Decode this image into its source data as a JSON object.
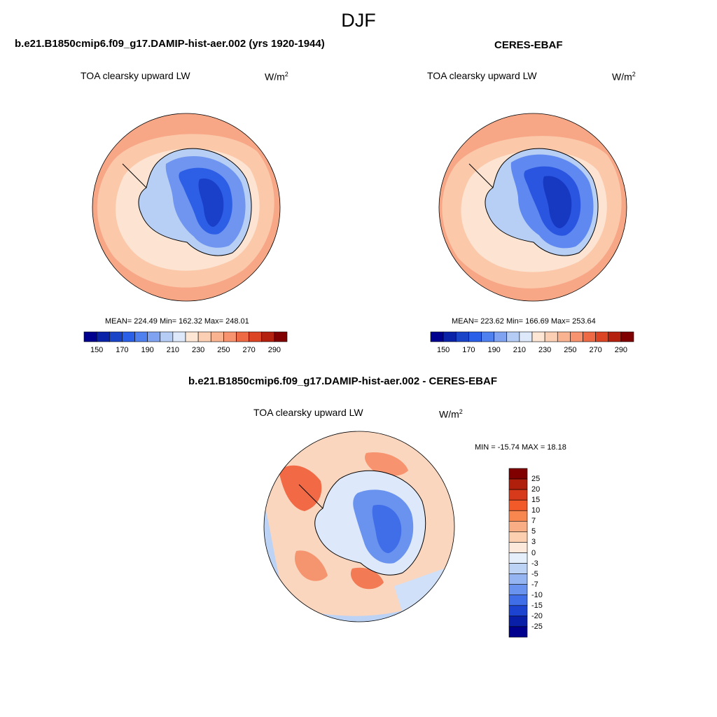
{
  "figure": {
    "title": "DJF"
  },
  "panels": [
    {
      "title": "b.e21.B1850cmip6.f09_g17.DAMIP-hist-aer.002 (yrs 1920-1944)",
      "variable": "TOA clearsky upward LW",
      "units_base": "W/m",
      "units_exp": "2",
      "stats": "MEAN= 224.49  Min= 162.32  Max= 248.01",
      "colorbar": {
        "labels": [
          "150",
          "170",
          "190",
          "210",
          "230",
          "250",
          "270",
          "290"
        ],
        "colors": [
          "#00008f",
          "#0a22a8",
          "#1a44c8",
          "#2a5fe8",
          "#4f80f0",
          "#7fa3f0",
          "#b5cdf5",
          "#dde9fb",
          "#fde6d3",
          "#fbcfb4",
          "#f9b391",
          "#f7936e",
          "#ee6a45",
          "#db4524",
          "#b4210f",
          "#800000"
        ]
      }
    },
    {
      "title": "CERES-EBAF",
      "variable": "TOA clearsky upward LW",
      "units_base": "W/m",
      "units_exp": "2",
      "stats": "MEAN= 223.62  Min= 166.69  Max= 253.64",
      "colorbar": {
        "labels": [
          "150",
          "170",
          "190",
          "210",
          "230",
          "250",
          "270",
          "290"
        ],
        "colors": [
          "#00008f",
          "#0a22a8",
          "#1a44c8",
          "#2a5fe8",
          "#4f80f0",
          "#7fa3f0",
          "#b5cdf5",
          "#dde9fb",
          "#fde6d3",
          "#fbcfb4",
          "#f9b391",
          "#f7936e",
          "#ee6a45",
          "#db4524",
          "#b4210f",
          "#800000"
        ]
      }
    },
    {
      "title": "b.e21.B1850cmip6.f09_g17.DAMIP-hist-aer.002 - CERES-EBAF",
      "variable": "TOA clearsky upward LW",
      "units_base": "W/m",
      "units_exp": "2",
      "stats": "MIN = -15.74 MAX =  18.18",
      "colorbar": {
        "labels": [
          "25",
          "20",
          "15",
          "10",
          "7",
          "5",
          "3",
          "0",
          "-3",
          "-5",
          "-7",
          "-10",
          "-15",
          "-20",
          "-25"
        ],
        "colors": [
          "#800000",
          "#b01e0c",
          "#d63a1a",
          "#f25a2a",
          "#f7864f",
          "#f9ad84",
          "#fbcfb0",
          "#fde9dc",
          "#e4effb",
          "#bcd3f6",
          "#94b5f2",
          "#6a93f0",
          "#3f6ee8",
          "#1c44d0",
          "#0a1fa8",
          "#00008f"
        ]
      }
    }
  ]
}
